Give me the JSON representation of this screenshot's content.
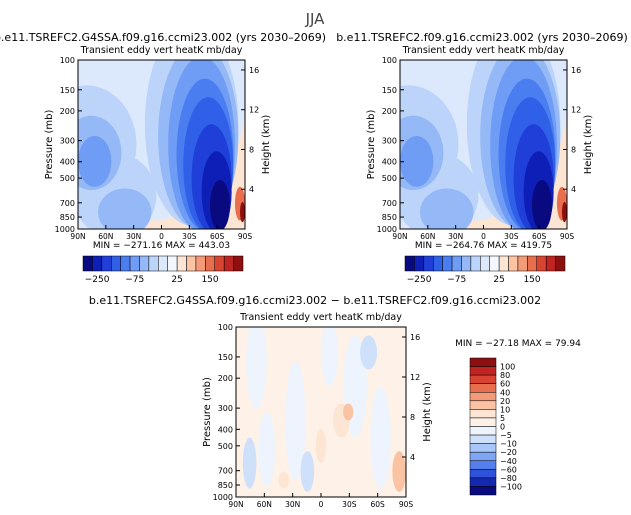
{
  "figure_title": "JJA",
  "chart_data": [
    {
      "type": "heatmap",
      "title": "b.e11.TSREFC2.G4SSA.f09.g16.ccmi23.002 (yrs 2030–2069)",
      "subtitle": "Transient eddy vert heatK mb/day",
      "ylabel": "Pressure (mb)",
      "ylabel_right": "Height (km)",
      "xticks": [
        "90N",
        "60N",
        "30N",
        "0",
        "30S",
        "60S",
        "90S"
      ],
      "yticks": [
        "100",
        "150",
        "200",
        "300",
        "400",
        "500",
        "700",
        "850",
        "1000"
      ],
      "yticks_right": [
        "16",
        "12",
        "8",
        "4"
      ],
      "ylim": [
        1000,
        100
      ],
      "stats": "MIN = −271.16   MAX = 443.03",
      "colorbar": {
        "tick_labels": [
          "−250",
          "−75",
          "25",
          "150"
        ],
        "colors": [
          "#0a0a80",
          "#0e1fb8",
          "#1f3fd8",
          "#3060e8",
          "#4a7ef0",
          "#6f9cf4",
          "#95b8f6",
          "#bcd4fa",
          "#dce9fc",
          "#f4f7fd",
          "#fde5d4",
          "#f9c3a4",
          "#f39a78",
          "#e86e4e",
          "#d94432",
          "#bf2420",
          "#8e0f0f"
        ]
      }
    },
    {
      "type": "heatmap",
      "title": "b.e11.TSREFC2.f09.g16.ccmi23.002 (yrs 2030–2069)",
      "subtitle": "Transient eddy vert heatK mb/day",
      "ylabel": "Pressure (mb)",
      "ylabel_right": "Height (km)",
      "xticks": [
        "90N",
        "60N",
        "30N",
        "0",
        "30S",
        "60S",
        "90S"
      ],
      "yticks": [
        "100",
        "150",
        "200",
        "300",
        "400",
        "500",
        "700",
        "850",
        "1000"
      ],
      "yticks_right": [
        "16",
        "12",
        "8",
        "4"
      ],
      "ylim": [
        1000,
        100
      ],
      "stats": "MIN = −264.76   MAX = 419.75",
      "colorbar": {
        "tick_labels": [
          "−250",
          "−75",
          "25",
          "150"
        ],
        "colors": [
          "#0a0a80",
          "#0e1fb8",
          "#1f3fd8",
          "#3060e8",
          "#4a7ef0",
          "#6f9cf4",
          "#95b8f6",
          "#bcd4fa",
          "#dce9fc",
          "#f4f7fd",
          "#fde5d4",
          "#f9c3a4",
          "#f39a78",
          "#e86e4e",
          "#d94432",
          "#bf2420",
          "#8e0f0f"
        ]
      }
    },
    {
      "type": "heatmap",
      "title": "b.e11.TSREFC2.G4SSA.f09.g16.ccmi23.002 − b.e11.TSREFC2.f09.g16.ccmi23.002",
      "subtitle": "Transient eddy vert heatK mb/day",
      "ylabel": "Pressure (mb)",
      "ylabel_right": "Height (km)",
      "xticks": [
        "90N",
        "60N",
        "30N",
        "0",
        "30S",
        "60S",
        "90S"
      ],
      "yticks": [
        "100",
        "150",
        "200",
        "300",
        "400",
        "500",
        "700",
        "850",
        "1000"
      ],
      "yticks_right": [
        "16",
        "12",
        "8",
        "4"
      ],
      "ylim": [
        1000,
        100
      ],
      "stats": "MIN = −27.18   MAX = 79.94",
      "colorbar": {
        "tick_labels": [
          "100",
          "80",
          "60",
          "40",
          "20",
          "10",
          "5",
          "0",
          "−5",
          "−10",
          "−20",
          "−40",
          "−60",
          "−80",
          "−100"
        ],
        "colors": [
          "#8e0f0f",
          "#bf2420",
          "#d94432",
          "#e86e4e",
          "#f39a78",
          "#f9c3a4",
          "#fde5d4",
          "#fdf1e8",
          "#eef4fd",
          "#cfe0fb",
          "#a8c6f8",
          "#7fa6f4",
          "#557fec",
          "#2f52da",
          "#1428b0",
          "#0a0a80"
        ]
      }
    }
  ]
}
